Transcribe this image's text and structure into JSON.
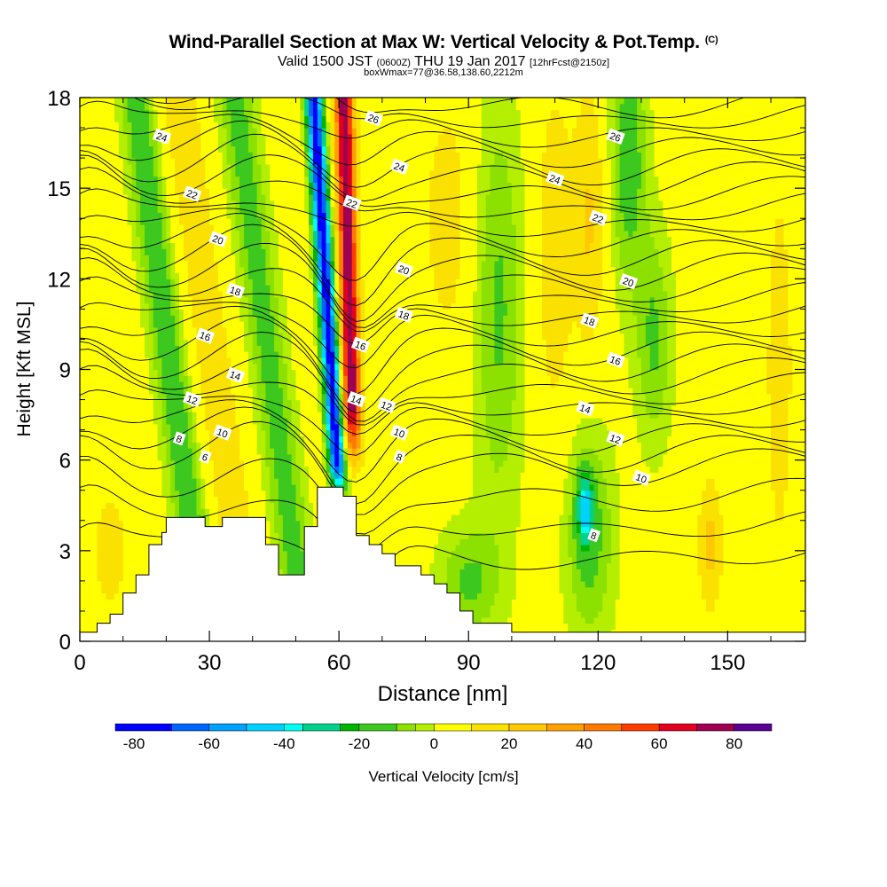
{
  "header": {
    "title": "Wind-Parallel Section at Max W: Vertical Velocity & Pot.Temp.",
    "title_mark": "(C)",
    "subtitle_a": "Valid 1500 JST",
    "subtitle_b": "(0600Z)",
    "subtitle_c": "THU 19 Jan 2017",
    "subtitle_d": "[12hrFcst@2150z]",
    "subtitle2": "boxWmax=77@36.58,138.60,2212m"
  },
  "chart_data": {
    "type": "heatmap",
    "xlabel": "Distance [nm]",
    "ylabel": "Height [Kft MSL]",
    "xlim": [
      0,
      168
    ],
    "ylim": [
      0,
      18
    ],
    "x_ticks": [
      0,
      30,
      60,
      90,
      120,
      150
    ],
    "y_ticks": [
      0,
      3,
      6,
      9,
      12,
      15,
      18
    ],
    "colorbar": {
      "label": "Vertical Velocity [cm/s]",
      "ticks": [
        -80,
        -60,
        -40,
        -20,
        0,
        20,
        40,
        60,
        80
      ],
      "range": [
        -85,
        90
      ],
      "bins": [
        {
          "from": -85,
          "to": -70,
          "color": "#0000ff"
        },
        {
          "from": -70,
          "to": -60,
          "color": "#0064ff"
        },
        {
          "from": -60,
          "to": -50,
          "color": "#00a0ff"
        },
        {
          "from": -50,
          "to": -40,
          "color": "#00d2ff"
        },
        {
          "from": -40,
          "to": -35,
          "color": "#00fff0"
        },
        {
          "from": -35,
          "to": -25,
          "color": "#00d28c"
        },
        {
          "from": -25,
          "to": -20,
          "color": "#00b400"
        },
        {
          "from": -20,
          "to": -10,
          "color": "#3cc81e"
        },
        {
          "from": -10,
          "to": -5,
          "color": "#8ce100"
        },
        {
          "from": -5,
          "to": 0,
          "color": "#b4ee00"
        },
        {
          "from": 0,
          "to": 10,
          "color": "#ffff00"
        },
        {
          "from": 10,
          "to": 20,
          "color": "#fae100"
        },
        {
          "from": 20,
          "to": 30,
          "color": "#ffc800"
        },
        {
          "from": 30,
          "to": 40,
          "color": "#ffa000"
        },
        {
          "from": 40,
          "to": 50,
          "color": "#ff7800"
        },
        {
          "from": 50,
          "to": 60,
          "color": "#ff3c00"
        },
        {
          "from": 60,
          "to": 70,
          "color": "#e1001e"
        },
        {
          "from": 70,
          "to": 80,
          "color": "#a00050"
        },
        {
          "from": 80,
          "to": 90,
          "color": "#5a0096"
        }
      ]
    },
    "terrain": [
      [
        0,
        0.3
      ],
      [
        4,
        0.3
      ],
      [
        4,
        0.6
      ],
      [
        7,
        0.6
      ],
      [
        7,
        0.9
      ],
      [
        10,
        0.9
      ],
      [
        10,
        1.6
      ],
      [
        13,
        1.6
      ],
      [
        13,
        2.2
      ],
      [
        16,
        2.2
      ],
      [
        16,
        3.2
      ],
      [
        19,
        3.2
      ],
      [
        19,
        3.6
      ],
      [
        20,
        3.6
      ],
      [
        20,
        4.1
      ],
      [
        29,
        4.1
      ],
      [
        29,
        3.8
      ],
      [
        33,
        3.8
      ],
      [
        33,
        4.1
      ],
      [
        43,
        4.1
      ],
      [
        43,
        3.2
      ],
      [
        46,
        3.2
      ],
      [
        46,
        2.2
      ],
      [
        52,
        2.2
      ],
      [
        52,
        3.8
      ],
      [
        55,
        3.8
      ],
      [
        55,
        5.1
      ],
      [
        61,
        5.1
      ],
      [
        61,
        4.8
      ],
      [
        64,
        4.8
      ],
      [
        64,
        3.5
      ],
      [
        67,
        3.5
      ],
      [
        67,
        3.2
      ],
      [
        70,
        3.2
      ],
      [
        70,
        2.9
      ],
      [
        73,
        2.9
      ],
      [
        73,
        2.5
      ],
      [
        79,
        2.5
      ],
      [
        79,
        2.2
      ],
      [
        82,
        2.2
      ],
      [
        82,
        1.9
      ],
      [
        85,
        1.9
      ],
      [
        85,
        1.6
      ],
      [
        88,
        1.6
      ],
      [
        88,
        1.0
      ],
      [
        91,
        1.0
      ],
      [
        91,
        0.6
      ],
      [
        100,
        0.6
      ],
      [
        100,
        0.3
      ],
      [
        168,
        0.3
      ]
    ],
    "isotherm_labels": [
      {
        "text": "26",
        "x": 68,
        "y": 17.3
      },
      {
        "text": "24",
        "x": 19,
        "y": 16.7
      },
      {
        "text": "26",
        "x": 124,
        "y": 16.7
      },
      {
        "text": "24",
        "x": 74,
        "y": 15.7
      },
      {
        "text": "24",
        "x": 110,
        "y": 15.3
      },
      {
        "text": "22",
        "x": 26,
        "y": 14.8
      },
      {
        "text": "22",
        "x": 63,
        "y": 14.5
      },
      {
        "text": "22",
        "x": 120,
        "y": 14.0
      },
      {
        "text": "20",
        "x": 32,
        "y": 13.3
      },
      {
        "text": "20",
        "x": 75,
        "y": 12.3
      },
      {
        "text": "20",
        "x": 127,
        "y": 11.9
      },
      {
        "text": "18",
        "x": 36,
        "y": 11.6
      },
      {
        "text": "18",
        "x": 75,
        "y": 10.8
      },
      {
        "text": "18",
        "x": 118,
        "y": 10.6
      },
      {
        "text": "16",
        "x": 29,
        "y": 10.1
      },
      {
        "text": "16",
        "x": 65,
        "y": 9.8
      },
      {
        "text": "16",
        "x": 124,
        "y": 9.3
      },
      {
        "text": "14",
        "x": 36,
        "y": 8.8
      },
      {
        "text": "14",
        "x": 64,
        "y": 8.0
      },
      {
        "text": "14",
        "x": 117,
        "y": 7.7
      },
      {
        "text": "12",
        "x": 26,
        "y": 8.0
      },
      {
        "text": "12",
        "x": 71,
        "y": 7.8
      },
      {
        "text": "12",
        "x": 124,
        "y": 6.7
      },
      {
        "text": "10",
        "x": 33,
        "y": 6.9
      },
      {
        "text": "10",
        "x": 74,
        "y": 6.9
      },
      {
        "text": "10",
        "x": 130,
        "y": 5.4
      },
      {
        "text": "8",
        "x": 23,
        "y": 6.7
      },
      {
        "text": "8",
        "x": 74,
        "y": 6.1
      },
      {
        "text": "8",
        "x": 119,
        "y": 3.5
      },
      {
        "text": "6",
        "x": 29,
        "y": 6.1
      }
    ]
  }
}
